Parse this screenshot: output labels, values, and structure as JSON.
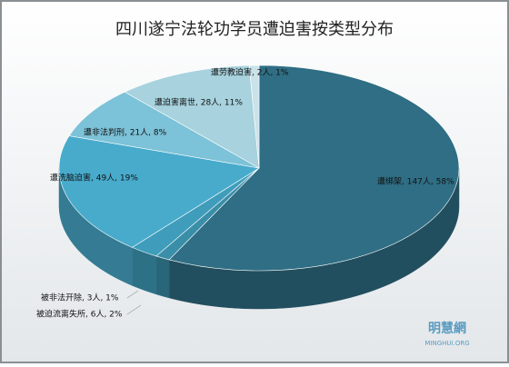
{
  "chart_data": {
    "type": "pie3d",
    "title": "四川遂宁法轮功学员遭迫害按类型分布",
    "categories": [
      "遭绑架",
      "被非法开除",
      "被迫流离失所",
      "遭洗脑迫害",
      "遭非法判刑",
      "遭迫害离世",
      "遭劳教迫害"
    ],
    "values": [
      147,
      3,
      6,
      49,
      21,
      28,
      2
    ],
    "value_labels": [
      "遭绑架, 147人, 58%",
      "被非法开除, 3人, 1%",
      "被迫流离失所, 6人, 2%",
      "遭洗脑迫害, 49人, 19%",
      "遭非法判刑, 21人, 8%",
      "遭迫害离世, 28人, 11%",
      "遭劳教迫害, 2人, 1%"
    ],
    "colors": [
      "#2f6e84",
      "#3a8ea8",
      "#3f9dbb",
      "#48abcc",
      "#7cc2d8",
      "#a7d2de",
      "#cae2e9"
    ],
    "watermark": {
      "title": "明慧網",
      "subtitle": "MINGHUI.ORG"
    }
  }
}
